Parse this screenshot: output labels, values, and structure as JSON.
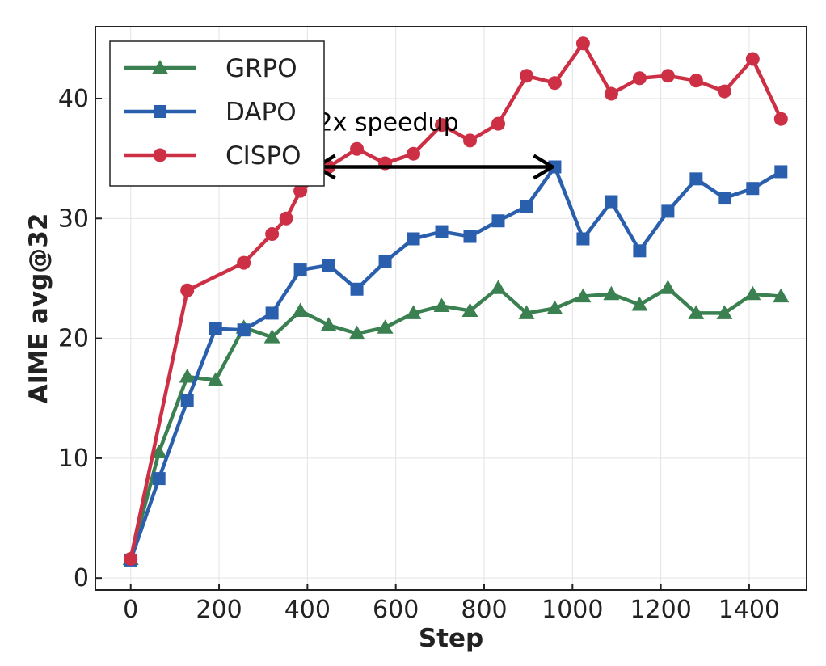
{
  "chart_data": {
    "type": "line",
    "xlabel": "Step",
    "ylabel": "AIME avg@32",
    "xlim": [
      -80,
      1530
    ],
    "ylim": [
      -1,
      46
    ],
    "xticks": [
      0,
      200,
      400,
      600,
      800,
      1000,
      1200,
      1400
    ],
    "yticks": [
      0,
      10,
      20,
      30,
      40
    ],
    "grid": true,
    "legend_position": "top-left",
    "series": [
      {
        "name": "GRPO",
        "color": "#3a8050",
        "marker": "triangle",
        "x": [
          0,
          64,
          128,
          192,
          256,
          320,
          384,
          448,
          512,
          576,
          640,
          704,
          768,
          832,
          896,
          960,
          1024,
          1088,
          1152,
          1216,
          1280,
          1344,
          1408,
          1472
        ],
        "y": [
          1.6,
          10.5,
          16.8,
          16.5,
          20.9,
          20.1,
          22.3,
          21.1,
          20.4,
          20.9,
          22.1,
          22.7,
          22.3,
          24.2,
          22.1,
          22.5,
          23.5,
          23.7,
          22.8,
          24.2,
          22.1,
          22.1,
          23.7,
          23.5
        ]
      },
      {
        "name": "DAPO",
        "color": "#2a5fad",
        "marker": "square",
        "x": [
          0,
          64,
          128,
          192,
          256,
          320,
          384,
          448,
          512,
          576,
          640,
          704,
          768,
          832,
          896,
          960,
          1024,
          1088,
          1152,
          1216,
          1280,
          1344,
          1408,
          1472
        ],
        "y": [
          1.5,
          8.3,
          14.8,
          20.8,
          20.7,
          22.1,
          25.7,
          26.1,
          24.1,
          26.4,
          28.3,
          28.9,
          28.5,
          29.8,
          31.0,
          34.3,
          28.3,
          31.4,
          27.3,
          30.6,
          33.3,
          31.7,
          32.5,
          33.9
        ]
      },
      {
        "name": "CISPO",
        "color": "#cd2f45",
        "marker": "circle",
        "x": [
          0,
          128,
          256,
          320,
          352,
          384,
          448,
          512,
          576,
          640,
          704,
          768,
          832,
          896,
          960,
          1024,
          1088,
          1152,
          1216,
          1280,
          1344,
          1408,
          1472
        ],
        "y": [
          1.6,
          24.0,
          26.3,
          28.7,
          30.0,
          32.3,
          34.3,
          35.8,
          34.6,
          35.4,
          37.8,
          36.5,
          37.9,
          41.9,
          41.3,
          44.6,
          40.4,
          41.7,
          41.9,
          41.5,
          40.6,
          43.3,
          38.3
        ]
      }
    ],
    "annotations": [
      {
        "text": "2x speedup",
        "arrow_from": [
          415,
          34.3
        ],
        "arrow_to": [
          960,
          34.3
        ],
        "arrow_style": "double-headed"
      }
    ]
  }
}
